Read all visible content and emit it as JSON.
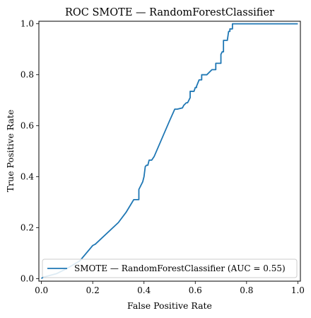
{
  "chart_data": {
    "type": "line",
    "title": "ROC SMOTE — RandomForestClassifier",
    "xlabel": "False Positive Rate",
    "ylabel": "True Positive Rate",
    "xlim": [
      -0.01,
      1.01
    ],
    "ylim": [
      -0.01,
      1.01
    ],
    "grid": false,
    "legend_position": "lower-right",
    "x_ticks": [
      "0.0",
      "0.2",
      "0.4",
      "0.6",
      "0.8",
      "1.0"
    ],
    "y_ticks": [
      "0.0",
      "0.2",
      "0.4",
      "0.6",
      "0.8",
      "1.0"
    ],
    "series": [
      {
        "name": "SMOTE — RandomForestClassifier (AUC = 0.55)",
        "color": "#1f77b4",
        "x": [
          0.0,
          0.005,
          0.06,
          0.1,
          0.15,
          0.2,
          0.21,
          0.3,
          0.33,
          0.36,
          0.37,
          0.38,
          0.38,
          0.385,
          0.395,
          0.4,
          0.405,
          0.41,
          0.415,
          0.42,
          0.43,
          0.44,
          0.5,
          0.52,
          0.53,
          0.55,
          0.555,
          0.565,
          0.57,
          0.58,
          0.58,
          0.595,
          0.6,
          0.605,
          0.605,
          0.615,
          0.625,
          0.625,
          0.645,
          0.645,
          0.665,
          0.67,
          0.68,
          0.68,
          0.69,
          0.7,
          0.7,
          0.705,
          0.71,
          0.71,
          0.725,
          0.73,
          0.735,
          0.735,
          0.745,
          0.745,
          0.95,
          1.0
        ],
        "y": [
          0.0,
          0.005,
          0.02,
          0.04,
          0.07,
          0.13,
          0.135,
          0.22,
          0.26,
          0.31,
          0.31,
          0.31,
          0.35,
          0.36,
          0.38,
          0.4,
          0.44,
          0.445,
          0.445,
          0.465,
          0.465,
          0.48,
          0.62,
          0.665,
          0.665,
          0.67,
          0.68,
          0.69,
          0.69,
          0.71,
          0.735,
          0.735,
          0.75,
          0.75,
          0.755,
          0.78,
          0.78,
          0.8,
          0.8,
          0.8,
          0.82,
          0.82,
          0.82,
          0.845,
          0.845,
          0.845,
          0.88,
          0.89,
          0.89,
          0.935,
          0.935,
          0.97,
          0.97,
          0.98,
          0.98,
          1.0,
          1.0,
          1.0
        ]
      }
    ]
  }
}
